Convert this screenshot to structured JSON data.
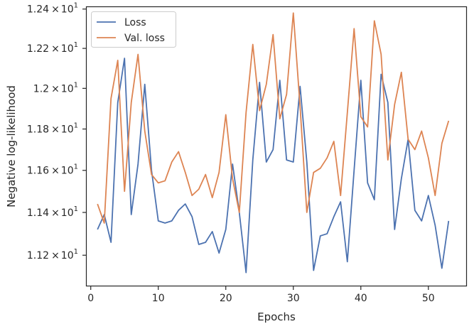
{
  "chart_data": {
    "type": "line",
    "title": "",
    "xlabel": "Epochs",
    "ylabel": "Negative log-likelihood",
    "xlim": [
      -0.6,
      55.6
    ],
    "ylim": [
      11.06,
      12.41
    ],
    "yscale": "log",
    "x_ticks": [
      {
        "value": 0,
        "label": "0"
      },
      {
        "value": 10,
        "label": "10"
      },
      {
        "value": 20,
        "label": "20"
      },
      {
        "value": 30,
        "label": "30"
      },
      {
        "value": 40,
        "label": "40"
      },
      {
        "value": 50,
        "label": "50"
      }
    ],
    "y_ticks": [
      {
        "value": 11.2,
        "mantissa": "1.12",
        "base": "10",
        "exp": "1"
      },
      {
        "value": 11.4,
        "mantissa": "1.14",
        "base": "10",
        "exp": "1"
      },
      {
        "value": 11.6,
        "mantissa": "1.16",
        "base": "10",
        "exp": "1"
      },
      {
        "value": 11.8,
        "mantissa": "1.18",
        "base": "10",
        "exp": "1"
      },
      {
        "value": 12.0,
        "mantissa": "1.2",
        "base": "10",
        "exp": "1"
      },
      {
        "value": 12.2,
        "mantissa": "1.22",
        "base": "10",
        "exp": "1"
      },
      {
        "value": 12.4,
        "mantissa": "1.24",
        "base": "10",
        "exp": "1"
      }
    ],
    "grid": false,
    "legend_position": "top-left",
    "series": [
      {
        "name": "Loss",
        "color": "#4c72b0",
        "x": [
          1,
          2,
          3,
          4,
          5,
          6,
          7,
          8,
          9,
          10,
          11,
          12,
          13,
          14,
          15,
          16,
          17,
          18,
          19,
          20,
          21,
          22,
          23,
          24,
          25,
          26,
          27,
          28,
          29,
          30,
          31,
          32,
          33,
          34,
          35,
          36,
          37,
          38,
          39,
          40,
          41,
          42,
          43,
          44,
          45,
          46,
          47,
          48,
          49,
          50,
          51,
          52,
          53
        ],
        "values": [
          11.32,
          11.39,
          11.26,
          11.93,
          12.15,
          11.39,
          11.63,
          12.02,
          11.6,
          11.36,
          11.35,
          11.36,
          11.41,
          11.44,
          11.38,
          11.25,
          11.26,
          11.31,
          11.21,
          11.32,
          11.63,
          11.4,
          11.12,
          11.65,
          12.03,
          11.64,
          11.7,
          12.04,
          11.65,
          11.64,
          12.01,
          11.64,
          11.13,
          11.29,
          11.3,
          11.38,
          11.45,
          11.17,
          11.6,
          12.04,
          11.54,
          11.46,
          12.07,
          11.93,
          11.32,
          11.56,
          11.75,
          11.41,
          11.36,
          11.48,
          11.34,
          11.14,
          11.36
        ]
      },
      {
        "name": "Val. loss",
        "color": "#dd8452",
        "x": [
          1,
          2,
          3,
          4,
          5,
          6,
          7,
          8,
          9,
          10,
          11,
          12,
          13,
          14,
          15,
          16,
          17,
          18,
          19,
          20,
          21,
          22,
          23,
          24,
          25,
          26,
          27,
          28,
          29,
          30,
          31,
          32,
          33,
          34,
          35,
          36,
          37,
          38,
          39,
          40,
          41,
          42,
          43,
          44,
          45,
          46,
          47,
          48,
          49,
          50,
          51,
          52,
          53
        ],
        "values": [
          11.44,
          11.35,
          11.95,
          12.14,
          11.5,
          11.93,
          12.17,
          11.79,
          11.58,
          11.54,
          11.55,
          11.64,
          11.69,
          11.59,
          11.48,
          11.51,
          11.58,
          11.47,
          11.59,
          11.87,
          11.56,
          11.4,
          11.88,
          12.22,
          11.89,
          12.02,
          12.27,
          11.85,
          11.97,
          12.38,
          11.91,
          11.4,
          11.59,
          11.61,
          11.66,
          11.74,
          11.48,
          11.88,
          12.3,
          11.86,
          11.81,
          12.34,
          12.17,
          11.65,
          11.92,
          12.08,
          11.75,
          11.7,
          11.79,
          11.66,
          11.48,
          11.73,
          11.84
        ]
      }
    ]
  }
}
